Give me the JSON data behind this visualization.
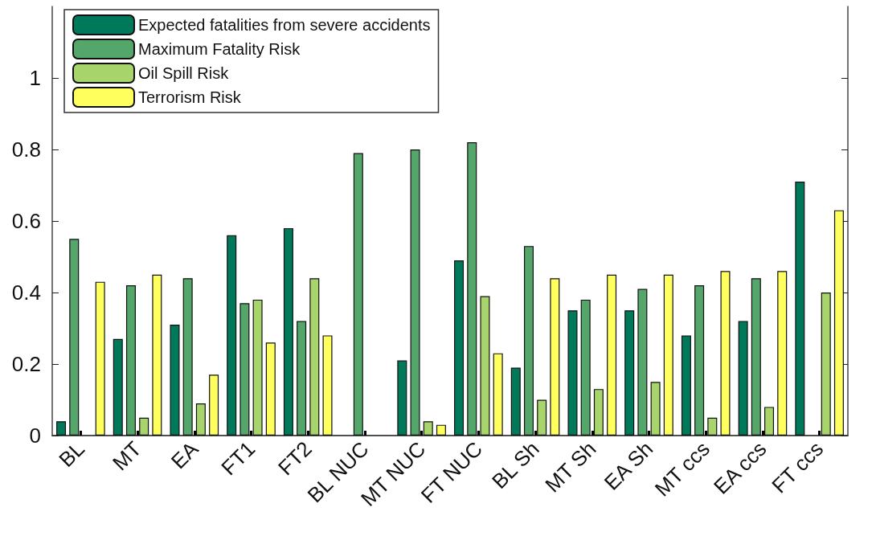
{
  "chart_data": {
    "type": "bar",
    "categories": [
      "BL",
      "MT",
      "EA",
      "FT1",
      "FT2",
      "BL NUC",
      "MT NUC",
      "FT NUC",
      "BL Sh",
      "MT Sh",
      "EA Sh",
      "MT ccs",
      "EA ccs",
      "FT ccs"
    ],
    "series": [
      {
        "name": "Expected fatalities from severe accidents",
        "color": "#00795a",
        "values": [
          0.04,
          0.27,
          0.31,
          0.56,
          0.58,
          null,
          0.21,
          0.49,
          0.19,
          0.35,
          0.35,
          0.28,
          0.32,
          0.71
        ]
      },
      {
        "name": "Maximum Fatality Risk",
        "color": "#55a66a",
        "values": [
          0.55,
          0.42,
          0.44,
          0.37,
          0.32,
          0.79,
          0.8,
          0.82,
          0.53,
          0.38,
          0.41,
          0.42,
          0.44,
          null
        ]
      },
      {
        "name": "Oil Spill Risk",
        "color": "#a8d46c",
        "values": [
          null,
          0.05,
          0.09,
          0.38,
          0.44,
          null,
          0.04,
          0.39,
          0.1,
          0.13,
          0.15,
          0.05,
          0.08,
          0.4
        ]
      },
      {
        "name": "Terrorism Risk",
        "color": "#ffff5e",
        "values": [
          0.43,
          0.45,
          0.17,
          0.26,
          0.28,
          null,
          0.03,
          0.23,
          0.44,
          0.45,
          0.45,
          0.46,
          0.46,
          0.63
        ]
      }
    ],
    "ylim": [
      0,
      1.2
    ],
    "yticks": [
      0,
      0.2,
      0.4,
      0.6,
      0.8,
      1
    ],
    "grid": false,
    "legend": "top left"
  }
}
